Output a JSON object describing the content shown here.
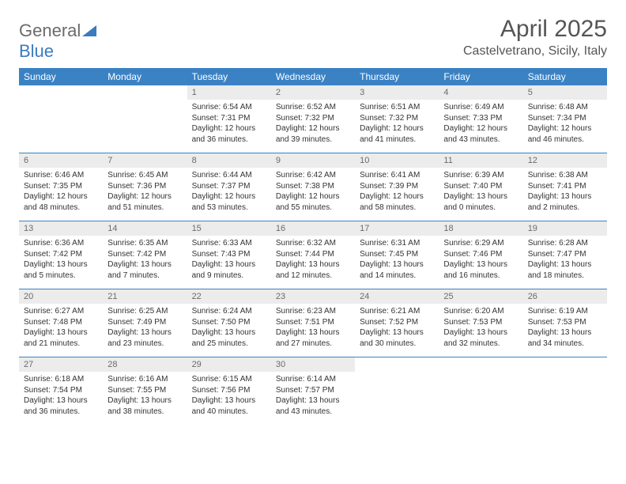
{
  "logo": {
    "text1": "General",
    "text2": "Blue"
  },
  "title": "April 2025",
  "location": "Castelvetrano, Sicily, Italy",
  "colors": {
    "header_bg": "#3b82c4",
    "header_text": "#ffffff",
    "daynum_bg": "#ececec",
    "text": "#333333",
    "muted": "#6b6b6b",
    "rule": "#3b82c4"
  },
  "dow": [
    "Sunday",
    "Monday",
    "Tuesday",
    "Wednesday",
    "Thursday",
    "Friday",
    "Saturday"
  ],
  "weeks": [
    [
      null,
      null,
      {
        "n": "1",
        "sr": "6:54 AM",
        "ss": "7:31 PM",
        "dl": "12 hours and 36 minutes."
      },
      {
        "n": "2",
        "sr": "6:52 AM",
        "ss": "7:32 PM",
        "dl": "12 hours and 39 minutes."
      },
      {
        "n": "3",
        "sr": "6:51 AM",
        "ss": "7:32 PM",
        "dl": "12 hours and 41 minutes."
      },
      {
        "n": "4",
        "sr": "6:49 AM",
        "ss": "7:33 PM",
        "dl": "12 hours and 43 minutes."
      },
      {
        "n": "5",
        "sr": "6:48 AM",
        "ss": "7:34 PM",
        "dl": "12 hours and 46 minutes."
      }
    ],
    [
      {
        "n": "6",
        "sr": "6:46 AM",
        "ss": "7:35 PM",
        "dl": "12 hours and 48 minutes."
      },
      {
        "n": "7",
        "sr": "6:45 AM",
        "ss": "7:36 PM",
        "dl": "12 hours and 51 minutes."
      },
      {
        "n": "8",
        "sr": "6:44 AM",
        "ss": "7:37 PM",
        "dl": "12 hours and 53 minutes."
      },
      {
        "n": "9",
        "sr": "6:42 AM",
        "ss": "7:38 PM",
        "dl": "12 hours and 55 minutes."
      },
      {
        "n": "10",
        "sr": "6:41 AM",
        "ss": "7:39 PM",
        "dl": "12 hours and 58 minutes."
      },
      {
        "n": "11",
        "sr": "6:39 AM",
        "ss": "7:40 PM",
        "dl": "13 hours and 0 minutes."
      },
      {
        "n": "12",
        "sr": "6:38 AM",
        "ss": "7:41 PM",
        "dl": "13 hours and 2 minutes."
      }
    ],
    [
      {
        "n": "13",
        "sr": "6:36 AM",
        "ss": "7:42 PM",
        "dl": "13 hours and 5 minutes."
      },
      {
        "n": "14",
        "sr": "6:35 AM",
        "ss": "7:42 PM",
        "dl": "13 hours and 7 minutes."
      },
      {
        "n": "15",
        "sr": "6:33 AM",
        "ss": "7:43 PM",
        "dl": "13 hours and 9 minutes."
      },
      {
        "n": "16",
        "sr": "6:32 AM",
        "ss": "7:44 PM",
        "dl": "13 hours and 12 minutes."
      },
      {
        "n": "17",
        "sr": "6:31 AM",
        "ss": "7:45 PM",
        "dl": "13 hours and 14 minutes."
      },
      {
        "n": "18",
        "sr": "6:29 AM",
        "ss": "7:46 PM",
        "dl": "13 hours and 16 minutes."
      },
      {
        "n": "19",
        "sr": "6:28 AM",
        "ss": "7:47 PM",
        "dl": "13 hours and 18 minutes."
      }
    ],
    [
      {
        "n": "20",
        "sr": "6:27 AM",
        "ss": "7:48 PM",
        "dl": "13 hours and 21 minutes."
      },
      {
        "n": "21",
        "sr": "6:25 AM",
        "ss": "7:49 PM",
        "dl": "13 hours and 23 minutes."
      },
      {
        "n": "22",
        "sr": "6:24 AM",
        "ss": "7:50 PM",
        "dl": "13 hours and 25 minutes."
      },
      {
        "n": "23",
        "sr": "6:23 AM",
        "ss": "7:51 PM",
        "dl": "13 hours and 27 minutes."
      },
      {
        "n": "24",
        "sr": "6:21 AM",
        "ss": "7:52 PM",
        "dl": "13 hours and 30 minutes."
      },
      {
        "n": "25",
        "sr": "6:20 AM",
        "ss": "7:53 PM",
        "dl": "13 hours and 32 minutes."
      },
      {
        "n": "26",
        "sr": "6:19 AM",
        "ss": "7:53 PM",
        "dl": "13 hours and 34 minutes."
      }
    ],
    [
      {
        "n": "27",
        "sr": "6:18 AM",
        "ss": "7:54 PM",
        "dl": "13 hours and 36 minutes."
      },
      {
        "n": "28",
        "sr": "6:16 AM",
        "ss": "7:55 PM",
        "dl": "13 hours and 38 minutes."
      },
      {
        "n": "29",
        "sr": "6:15 AM",
        "ss": "7:56 PM",
        "dl": "13 hours and 40 minutes."
      },
      {
        "n": "30",
        "sr": "6:14 AM",
        "ss": "7:57 PM",
        "dl": "13 hours and 43 minutes."
      },
      null,
      null,
      null
    ]
  ],
  "labels": {
    "sunrise": "Sunrise:",
    "sunset": "Sunset:",
    "daylight": "Daylight:"
  }
}
